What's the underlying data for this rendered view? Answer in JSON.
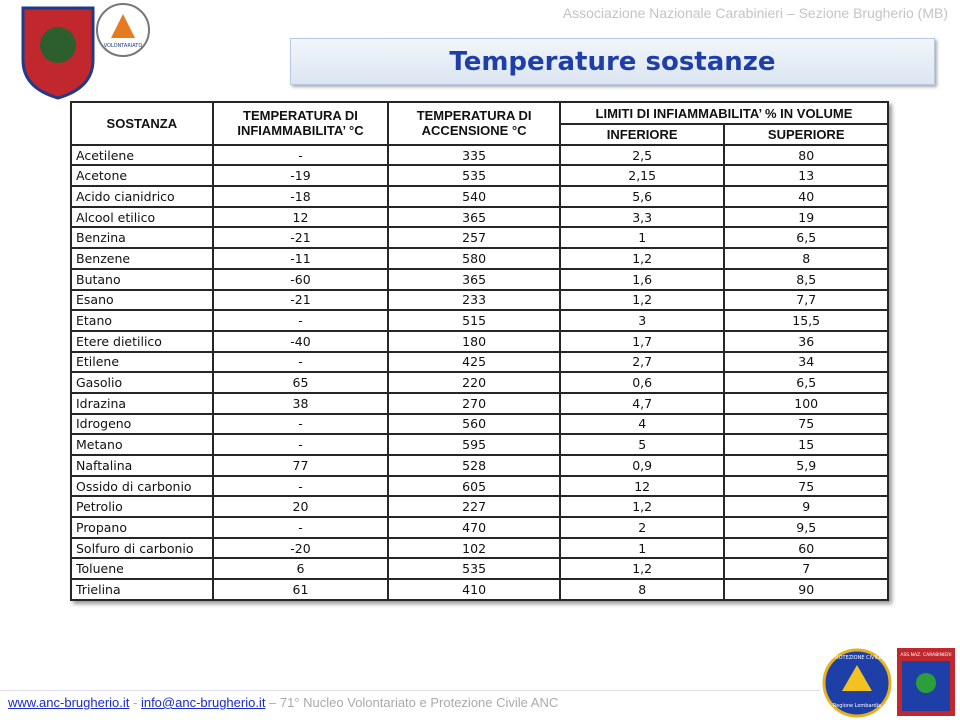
{
  "header": {
    "organization": "Associazione Nazionale Carabinieri – Sezione Brugherio (MB)",
    "title": "Temperature sostanze",
    "logo_text": "VOLONTARIATO"
  },
  "table": {
    "columns": {
      "substance": "SOSTANZA",
      "flash_point": "TEMPERATURA DI INFIAMMABILITA’ °C",
      "ignition": "TEMPERATURA DI ACCENSIONE °C",
      "limits": "LIMITI DI INFIAMMABILITA’ % IN VOLUME",
      "lower": "INFERIORE",
      "upper": "SUPERIORE"
    },
    "rows": [
      [
        "Acetilene",
        "-",
        "335",
        "2,5",
        "80"
      ],
      [
        "Acetone",
        "-19",
        "535",
        "2,15",
        "13"
      ],
      [
        "Acido cianidrico",
        "-18",
        "540",
        "5,6",
        "40"
      ],
      [
        "Alcool etilico",
        "12",
        "365",
        "3,3",
        "19"
      ],
      [
        "Benzina",
        "-21",
        "257",
        "1",
        "6,5"
      ],
      [
        "Benzene",
        "-11",
        "580",
        "1,2",
        "8"
      ],
      [
        "Butano",
        "-60",
        "365",
        "1,6",
        "8,5"
      ],
      [
        "Esano",
        "-21",
        "233",
        "1,2",
        "7,7"
      ],
      [
        "Etano",
        "-",
        "515",
        "3",
        "15,5"
      ],
      [
        "Etere dietilico",
        "-40",
        "180",
        "1,7",
        "36"
      ],
      [
        "Etilene",
        "-",
        "425",
        "2,7",
        "34"
      ],
      [
        "Gasolio",
        "65",
        "220",
        "0,6",
        "6,5"
      ],
      [
        "Idrazina",
        "38",
        "270",
        "4,7",
        "100"
      ],
      [
        "Idrogeno",
        "-",
        "560",
        "4",
        "75"
      ],
      [
        "Metano",
        "-",
        "595",
        "5",
        "15"
      ],
      [
        "Naftalina",
        "77",
        "528",
        "0,9",
        "5,9"
      ],
      [
        "Ossido di carbonio",
        "-",
        "605",
        "12",
        "75"
      ],
      [
        "Petrolio",
        "20",
        "227",
        "1,2",
        "9"
      ],
      [
        "Propano",
        "-",
        "470",
        "2",
        "9,5"
      ],
      [
        "Solfuro di carbonio",
        "-20",
        "102",
        "1",
        "60"
      ],
      [
        "Toluene",
        "6",
        "535",
        "1,2",
        "7"
      ],
      [
        "Trielina",
        "61",
        "410",
        "8",
        "90"
      ]
    ]
  },
  "footer": {
    "website": "www.anc-brugherio.it",
    "separator": " - ",
    "email": "info@anc-brugherio.it",
    "note": " – 71° Nucleo Volontariato e Protezione Civile ANC",
    "logo_civil": "PROTEZIONE CIVILE",
    "logo_region": "Regione Lombardia",
    "logo_anc": "ASS.NAZ. CARABINIERI"
  }
}
